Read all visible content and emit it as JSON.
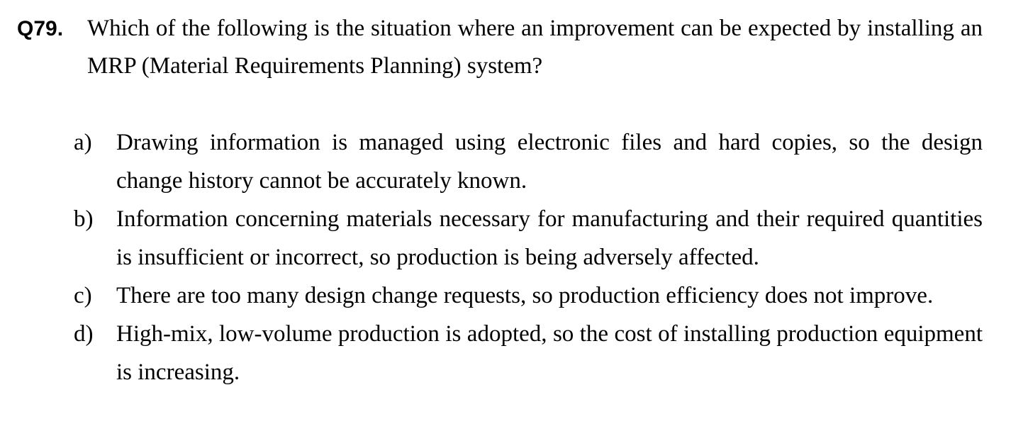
{
  "question": {
    "number": "Q79.",
    "text": "Which of the following is the situation where an improvement can be expected by installing an MRP (Material Requirements Planning) system?"
  },
  "options": [
    {
      "label": "a)",
      "text": "Drawing information is managed using electronic files and hard copies, so the design change history cannot be accurately known."
    },
    {
      "label": "b)",
      "text": "Information concerning materials necessary for manufacturing and their required quantities is insufficient or incorrect, so production is being adversely affected."
    },
    {
      "label": "c)",
      "text": "There are too many design change requests, so production efficiency does not improve."
    },
    {
      "label": "d)",
      "text": "High-mix, low-volume production is adopted, so the cost of installing production equipment is increasing."
    }
  ]
}
